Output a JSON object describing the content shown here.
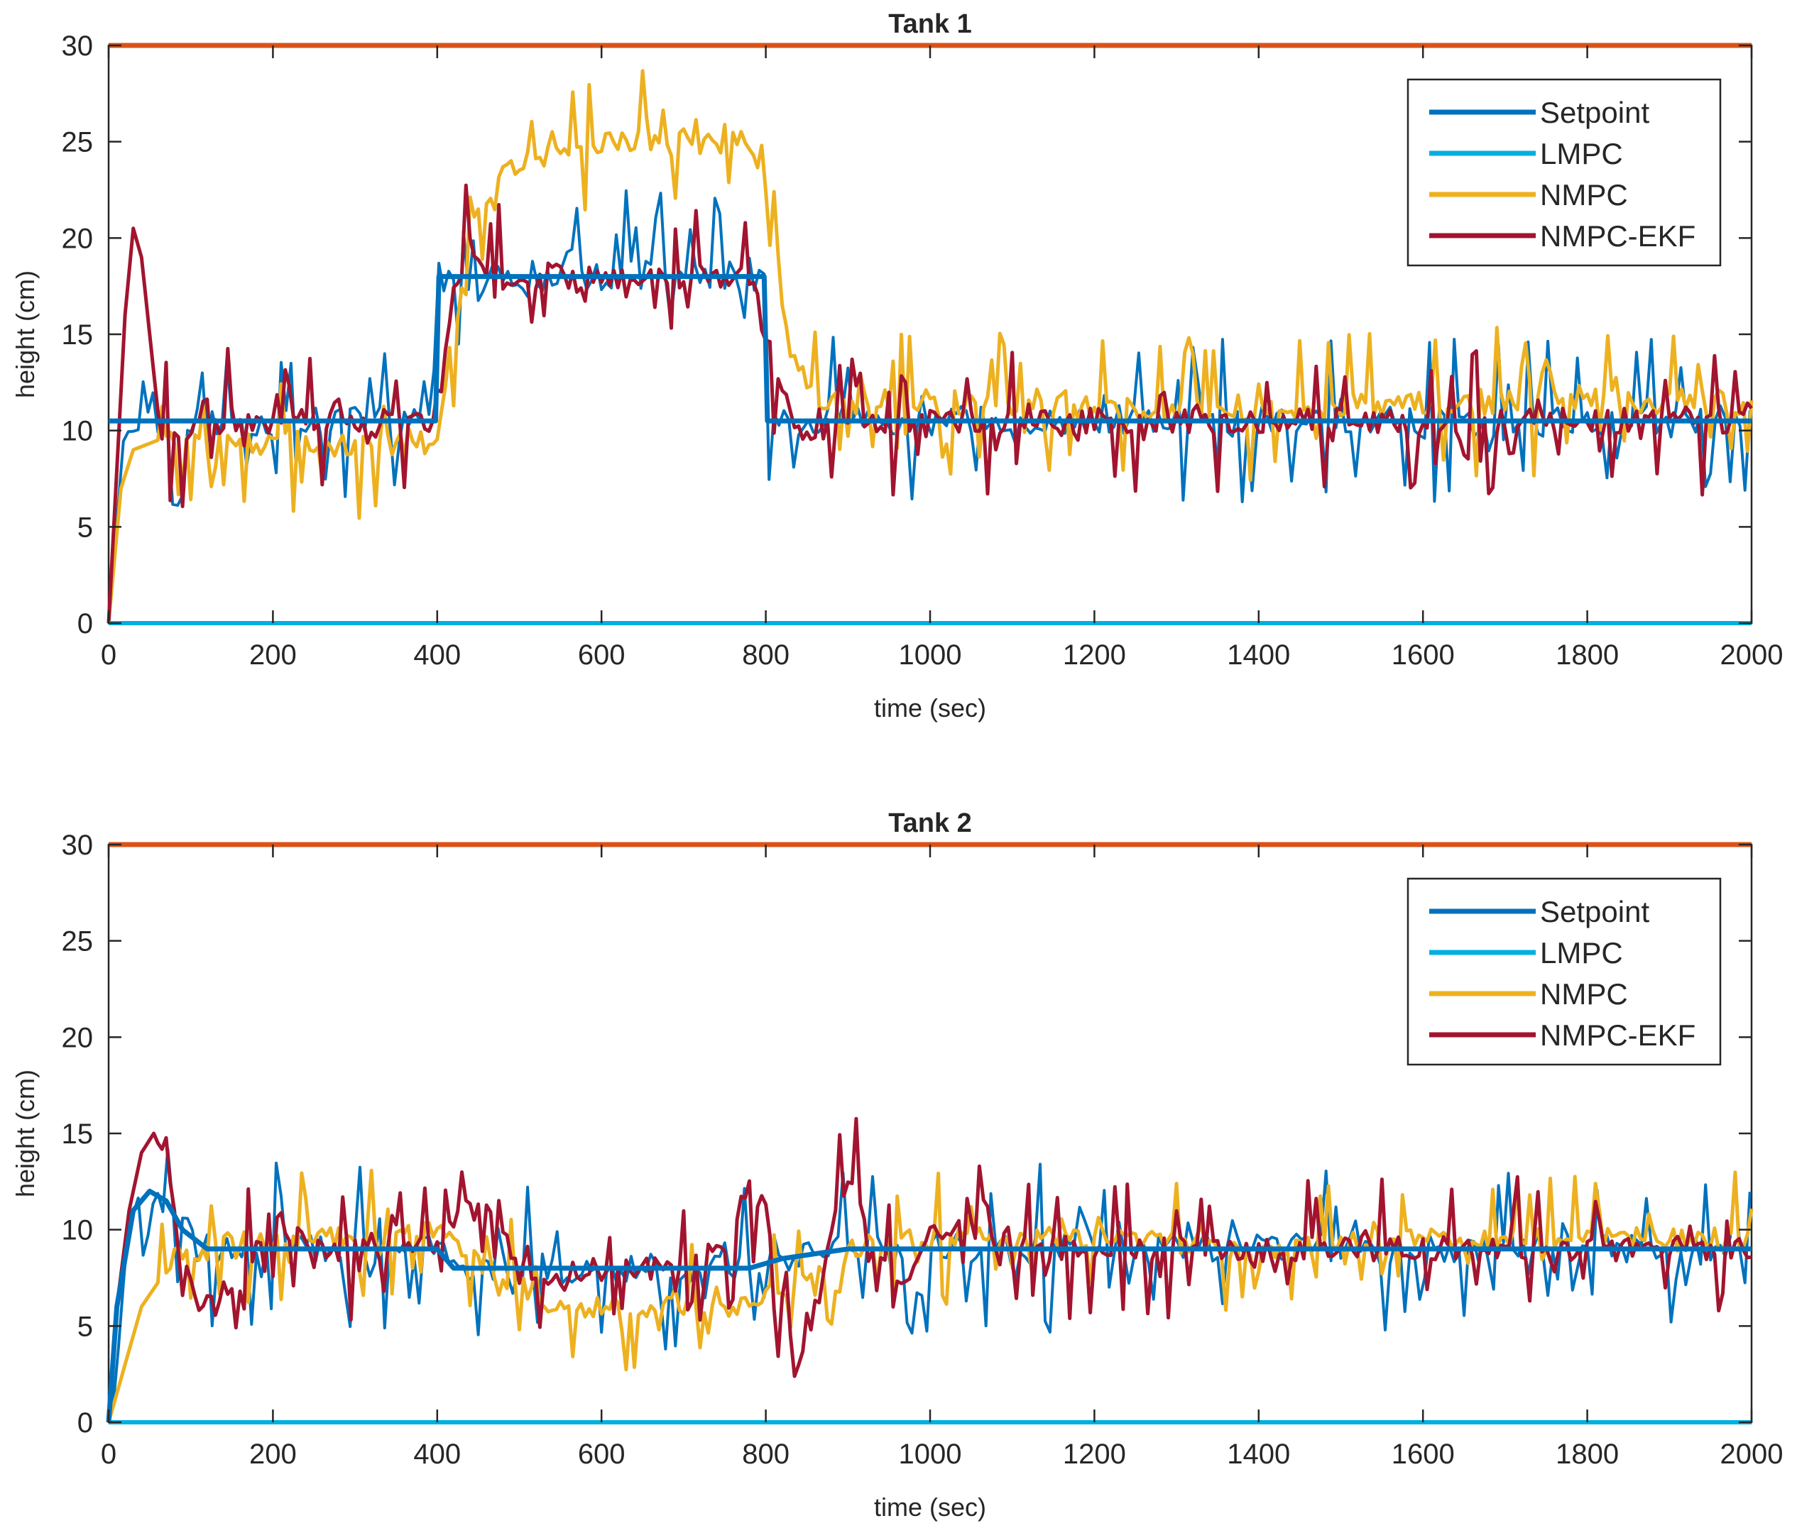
{
  "chart_data": [
    {
      "type": "line",
      "title": "Tank 1",
      "xlabel": "time (sec)",
      "ylabel": "height (cm)",
      "xlim": [
        0,
        2000
      ],
      "ylim": [
        0,
        30
      ],
      "xticks": [
        0,
        200,
        400,
        600,
        800,
        1000,
        1200,
        1400,
        1600,
        1800,
        2000
      ],
      "yticks": [
        0,
        5,
        10,
        15,
        20,
        25,
        30
      ],
      "grid": false,
      "legend_position": "top-right",
      "limit_line": {
        "y": 30,
        "color": "#D95319"
      },
      "series": [
        {
          "name": "Setpoint",
          "color": "#0072BD",
          "width": 7,
          "x": [
            0,
            398,
            402,
            798,
            802,
            2000
          ],
          "y": [
            10.5,
            10.5,
            18,
            18,
            10.5,
            10.5
          ]
        },
        {
          "name": "LMPC",
          "color": "#00B0E0",
          "width": 6,
          "x": [
            0,
            2000
          ],
          "y": [
            0,
            0
          ]
        },
        {
          "name": "NMPC",
          "color": "#EDB120",
          "width": 5,
          "x": [
            0,
            15,
            30,
            60,
            100,
            200,
            300,
            400,
            420,
            450,
            500,
            600,
            700,
            780,
            800,
            830,
            860,
            900,
            1000,
            1200,
            1400,
            1600,
            1800,
            2000
          ],
          "y": [
            0,
            7,
            9,
            9.5,
            9.5,
            9.3,
            9.3,
            9.3,
            15,
            22,
            24,
            25,
            25,
            25,
            23,
            14,
            11.5,
            11.5,
            11.5,
            11.2,
            11,
            11.5,
            11.5,
            11.5
          ]
        },
        {
          "name": "NMPC-EKF",
          "color": "#A2142F",
          "width": 5,
          "x": [
            0,
            10,
            20,
            30,
            40,
            50,
            60,
            80,
            100,
            150,
            200,
            300,
            400,
            420,
            440,
            470,
            500,
            600,
            700,
            780,
            800,
            820,
            840,
            860,
            900,
            1000,
            1200,
            1400,
            1600,
            1800,
            2000
          ],
          "y": [
            0,
            8,
            16,
            20.5,
            19,
            15,
            11,
            9.5,
            10,
            10.5,
            10.5,
            10.5,
            10.5,
            17,
            20,
            18,
            18,
            18,
            18,
            18,
            15,
            12,
            10,
            9.8,
            10.2,
            10.5,
            10.5,
            10.5,
            10.5,
            10.5,
            10.5
          ]
        }
      ]
    },
    {
      "type": "line",
      "title": "Tank 2",
      "xlabel": "time (sec)",
      "ylabel": "height (cm)",
      "xlim": [
        0,
        2000
      ],
      "ylim": [
        0,
        30
      ],
      "xticks": [
        0,
        200,
        400,
        600,
        800,
        1000,
        1200,
        1400,
        1600,
        1800,
        2000
      ],
      "yticks": [
        0,
        5,
        10,
        15,
        20,
        25,
        30
      ],
      "grid": false,
      "legend_position": "top-right",
      "limit_line": {
        "y": 30,
        "color": "#D95319"
      },
      "series": [
        {
          "name": "Setpoint",
          "color": "#0072BD",
          "width": 7,
          "x": [
            0,
            10,
            30,
            50,
            70,
            90,
            120,
            200,
            300,
            400,
            420,
            500,
            600,
            700,
            780,
            820,
            900,
            1000,
            1200,
            1400,
            1600,
            1800,
            2000
          ],
          "y": [
            0,
            6,
            11,
            12,
            11.5,
            10,
            9,
            9,
            9,
            9,
            8,
            8,
            8,
            8,
            8,
            8.5,
            9,
            9,
            9,
            9,
            9,
            9,
            9
          ]
        },
        {
          "name": "LMPC",
          "color": "#00B0E0",
          "width": 6,
          "x": [
            0,
            2000
          ],
          "y": [
            0,
            0
          ]
        },
        {
          "name": "NMPC",
          "color": "#EDB120",
          "width": 5,
          "x": [
            0,
            20,
            40,
            80,
            150,
            250,
            380,
            420,
            460,
            500,
            550,
            600,
            700,
            780,
            800,
            840,
            880,
            950,
            1000,
            1200,
            1400,
            1600,
            1800,
            2000
          ],
          "y": [
            0,
            3,
            6,
            8.5,
            9.3,
            9.5,
            10,
            9.5,
            8,
            7,
            6,
            6,
            6,
            6,
            6.5,
            7,
            8.5,
            9.5,
            9.5,
            9.5,
            9,
            9.5,
            9.5,
            9.5
          ]
        },
        {
          "name": "NMPC-EKF",
          "color": "#A2142F",
          "width": 5,
          "x": [
            0,
            10,
            25,
            40,
            55,
            70,
            90,
            110,
            130,
            160,
            200,
            260,
            320,
            400,
            430,
            460,
            500,
            540,
            600,
            650,
            700,
            750,
            780,
            800,
            820,
            840,
            860,
            880,
            900,
            920,
            960,
            1000,
            1050,
            1100,
            1200,
            1400,
            1600,
            1800,
            2000
          ],
          "y": [
            0,
            6,
            11,
            14,
            15,
            13.5,
            9,
            6,
            6,
            8,
            10.5,
            9,
            9,
            9,
            11,
            11,
            8,
            7.5,
            8,
            8,
            8,
            9,
            12.5,
            11,
            6,
            3.5,
            6,
            9.5,
            13,
            11,
            7,
            9.5,
            10,
            9,
            9,
            9,
            9,
            9,
            9
          ]
        }
      ]
    }
  ]
}
